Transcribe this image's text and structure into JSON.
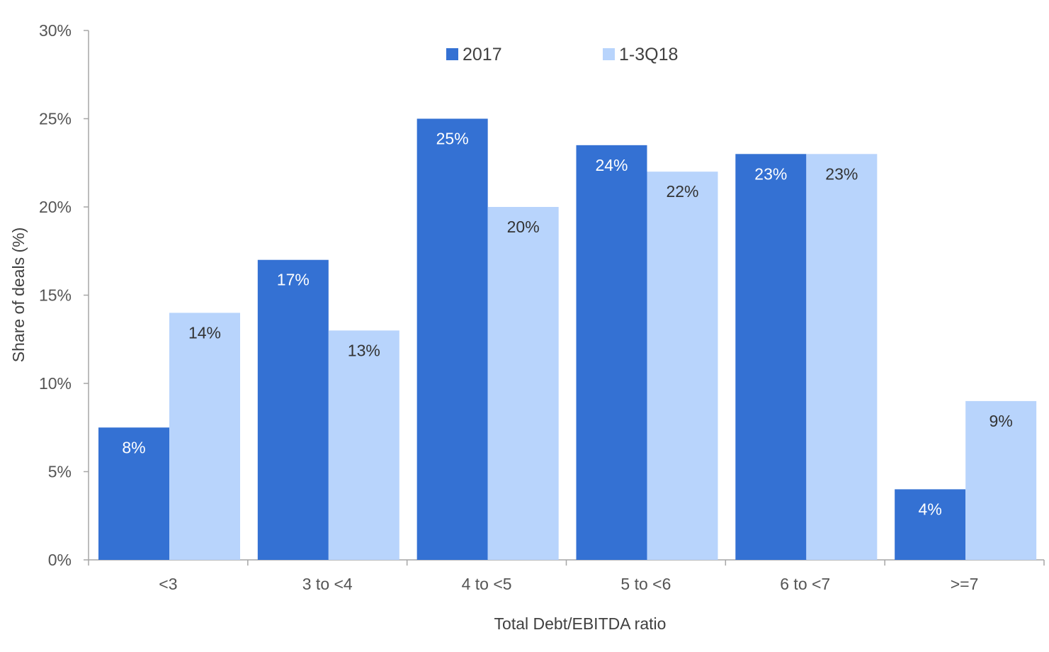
{
  "chart_data": {
    "type": "bar",
    "categories": [
      "<3",
      "3 to <4",
      "4 to <5",
      "5 to <6",
      "6 to <7",
      ">=7"
    ],
    "series": [
      {
        "name": "2017",
        "color": "#3471D3",
        "label_color": "#ffffff",
        "values": [
          7.5,
          17,
          25,
          23.5,
          23,
          4
        ],
        "labels": [
          "8%",
          "17%",
          "25%",
          "24%",
          "23%",
          "4%"
        ]
      },
      {
        "name": "1-3Q18",
        "color": "#B8D4FC",
        "label_color": "#333333",
        "values": [
          14,
          13,
          20,
          22,
          23,
          9
        ],
        "labels": [
          "14%",
          "13%",
          "20%",
          "22%",
          "23%",
          "9%"
        ]
      }
    ],
    "ylim": [
      0,
      30
    ],
    "yticks": [
      0,
      5,
      10,
      15,
      20,
      25,
      30
    ],
    "ytick_labels": [
      "0%",
      "5%",
      "10%",
      "15%",
      "20%",
      "25%",
      "30%"
    ],
    "xlabel": "Total Debt/EBITDA ratio",
    "ylabel": "Share of deals (%)",
    "legend_position": "top-center",
    "grid": false,
    "axis_color": "#A6A6A6"
  }
}
